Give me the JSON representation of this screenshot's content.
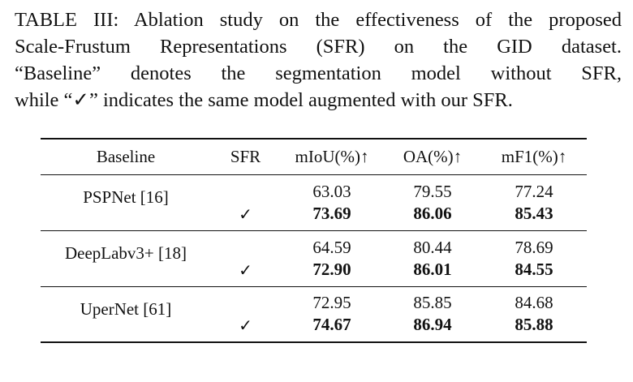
{
  "caption": {
    "lines": [
      "TABLE III: Ablation study on the effectiveness of the proposed",
      "Scale-Frustum Representations (SFR) on the GID dataset.",
      "“Baseline” denotes the segmentation model without SFR,",
      "while “✓” indicates the same model augmented with our SFR."
    ]
  },
  "table": {
    "headers": {
      "baseline": "Baseline",
      "sfr": "SFR",
      "miou": "mIoU(%)↑",
      "oa": "OA(%)↑",
      "mf1": "mF1(%)↑"
    },
    "rows": [
      {
        "baseline": "PSPNet [16]",
        "sfr_mark": "✓",
        "miou": [
          "63.03",
          "73.69"
        ],
        "oa": [
          "79.55",
          "86.06"
        ],
        "mf1": [
          "77.24",
          "85.43"
        ]
      },
      {
        "baseline": "DeepLabv3+ [18]",
        "sfr_mark": "✓",
        "miou": [
          "64.59",
          "72.90"
        ],
        "oa": [
          "80.44",
          "86.01"
        ],
        "mf1": [
          "78.69",
          "84.55"
        ]
      },
      {
        "baseline": "UperNet [61]",
        "sfr_mark": "✓",
        "miou": [
          "72.95",
          "74.67"
        ],
        "oa": [
          "85.85",
          "86.94"
        ],
        "mf1": [
          "84.68",
          "85.88"
        ]
      }
    ]
  }
}
